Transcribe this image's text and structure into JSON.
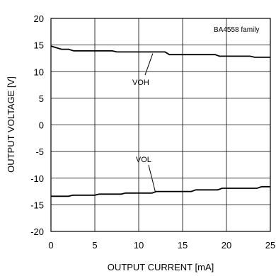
{
  "chart_data": {
    "type": "line",
    "family_label": "BA4558  family",
    "xlabel": "OUTPUT CURRENT [mA]",
    "ylabel": "OUTPUT VOLTAGE [V]",
    "xlim": [
      0,
      25
    ],
    "ylim": [
      -20,
      20
    ],
    "x_ticks": [
      0,
      5,
      10,
      15,
      20,
      25
    ],
    "y_ticks": [
      20,
      15,
      10,
      5,
      0,
      -5,
      -10,
      -15,
      -20
    ],
    "grid": true,
    "series": [
      {
        "name": "VOH",
        "x": [
          0,
          0.6,
          1.2,
          2.0,
          2.6,
          7.0,
          7.5,
          13.0,
          13.5,
          18.7,
          19.2,
          22.7,
          23.2,
          25
        ],
        "y": [
          14.8,
          14.5,
          14.2,
          14.2,
          13.9,
          13.9,
          13.7,
          13.7,
          13.2,
          13.2,
          12.9,
          12.9,
          12.7,
          12.7
        ]
      },
      {
        "name": "VOL",
        "x": [
          0,
          2.0,
          2.5,
          5.0,
          5.5,
          8.0,
          8.5,
          11.5,
          12.0,
          16.0,
          16.5,
          19.0,
          19.5,
          23.5,
          24.0,
          25
        ],
        "y": [
          -13.4,
          -13.4,
          -13.2,
          -13.2,
          -13.0,
          -13.0,
          -12.8,
          -12.8,
          -12.5,
          -12.5,
          -12.2,
          -12.2,
          -11.9,
          -11.9,
          -11.6,
          -11.6
        ]
      }
    ],
    "annotations": [
      {
        "text": "VOH",
        "series": "VOH",
        "point": [
          11.6,
          13.4
        ],
        "label_at": [
          10.4,
          7.5
        ]
      },
      {
        "text": "VOL",
        "series": "VOL",
        "point": [
          11.9,
          -12.6
        ],
        "label_at": [
          10.8,
          -7.0
        ]
      }
    ]
  }
}
